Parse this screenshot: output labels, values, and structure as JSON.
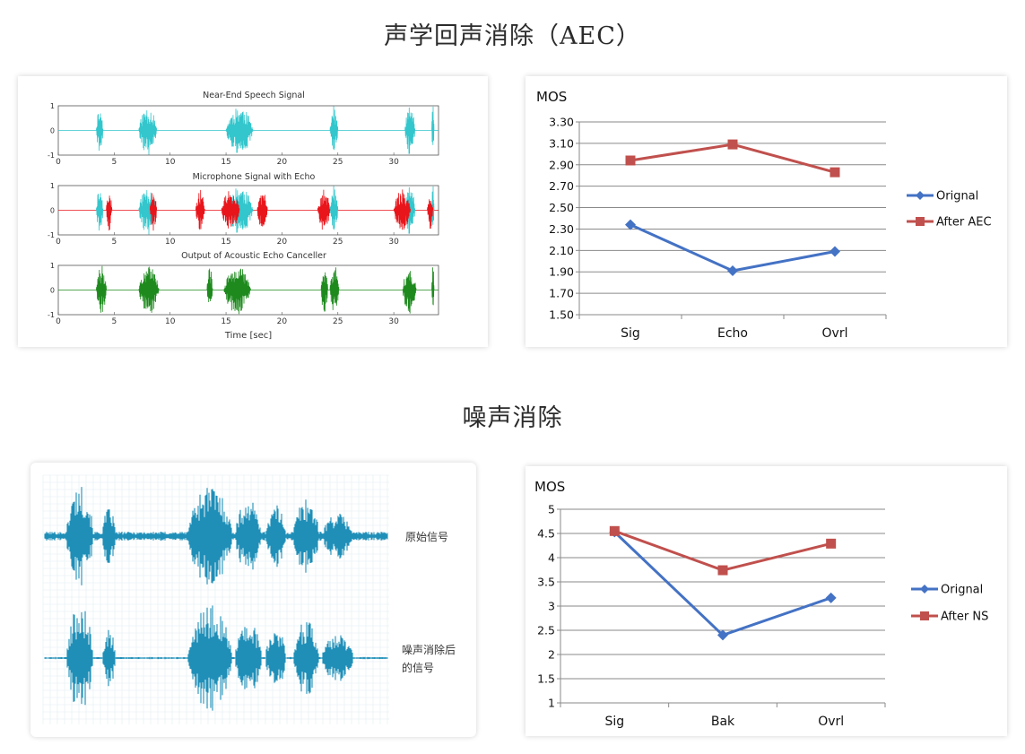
{
  "sections": {
    "aec_title": "声学回声消除（AEC）",
    "ns_title": "噪声消除"
  },
  "aec_waveform": {
    "plots": [
      {
        "title": "Near-End Speech Signal",
        "color": "#33c6cc"
      },
      {
        "title": "Microphone Signal with Echo",
        "color": "#e8151b"
      },
      {
        "title": "Output of Acoustic Echo Canceller",
        "color": "#1e8a1e"
      }
    ],
    "x_ticks": [
      "0",
      "5",
      "10",
      "15",
      "20",
      "25",
      "30"
    ],
    "y_ticks": [
      "1",
      "0",
      "-1"
    ],
    "xlabel": "Time [sec]"
  },
  "ns_waveform": {
    "color": "#1f8fb8",
    "labels": {
      "original": "原始信号",
      "denoised_line1": "噪声消除后",
      "denoised_line2": "的信号"
    }
  },
  "chart_data": [
    {
      "type": "line",
      "ylabel": "MOS",
      "categories": [
        "Sig",
        "Echo",
        "Ovrl"
      ],
      "ylim": [
        1.5,
        3.3
      ],
      "yticks": [
        "3.30",
        "3.10",
        "2.90",
        "2.70",
        "2.50",
        "2.30",
        "2.10",
        "1.90",
        "1.70",
        "1.50"
      ],
      "grid": true,
      "legend_position": "right",
      "series": [
        {
          "name": "Orignal",
          "values": [
            2.34,
            1.91,
            2.09
          ],
          "color": "#4472c4",
          "marker": "diamond"
        },
        {
          "name": "After AEC",
          "values": [
            2.94,
            3.09,
            2.83
          ],
          "color": "#c0504d",
          "marker": "square"
        }
      ]
    },
    {
      "type": "line",
      "ylabel": "MOS",
      "categories": [
        "Sig",
        "Bak",
        "Ovrl"
      ],
      "ylim": [
        1,
        5
      ],
      "yticks": [
        "5",
        "4.5",
        "4",
        "3.5",
        "3",
        "2.5",
        "2",
        "1.5",
        "1"
      ],
      "grid": true,
      "legend_position": "right",
      "series": [
        {
          "name": "Orignal",
          "values": [
            4.53,
            2.4,
            3.17
          ],
          "color": "#4472c4",
          "marker": "diamond"
        },
        {
          "name": "After NS",
          "values": [
            4.55,
            3.74,
            4.29
          ],
          "color": "#c0504d",
          "marker": "square"
        }
      ]
    }
  ]
}
